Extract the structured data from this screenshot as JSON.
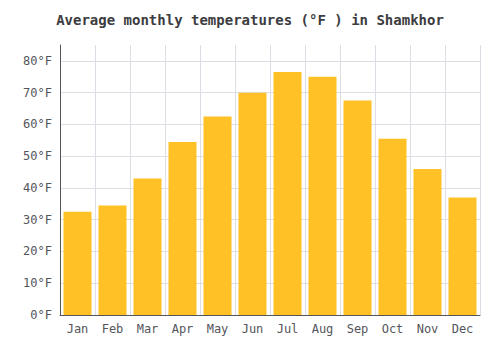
{
  "chart_data": {
    "type": "bar",
    "title": "Average monthly temperatures (°F ) in Shamkhor",
    "categories": [
      "Jan",
      "Feb",
      "Mar",
      "Apr",
      "May",
      "Jun",
      "Jul",
      "Aug",
      "Sep",
      "Oct",
      "Nov",
      "Dec"
    ],
    "values": [
      32.5,
      34.5,
      43,
      54.5,
      62.5,
      70,
      76.5,
      75,
      67.5,
      55.5,
      46,
      37
    ],
    "color": "#FFC125",
    "ylim": [
      0,
      85
    ],
    "yticks": [
      {
        "value": 0,
        "label": "0°F"
      },
      {
        "value": 10,
        "label": "10°F"
      },
      {
        "value": 20,
        "label": "20°F"
      },
      {
        "value": 30,
        "label": "30°F"
      },
      {
        "value": 40,
        "label": "40°F"
      },
      {
        "value": 50,
        "label": "50°F"
      },
      {
        "value": 60,
        "label": "60°F"
      },
      {
        "value": 70,
        "label": "70°F"
      },
      {
        "value": 80,
        "label": "80°F"
      }
    ],
    "grid": true
  }
}
